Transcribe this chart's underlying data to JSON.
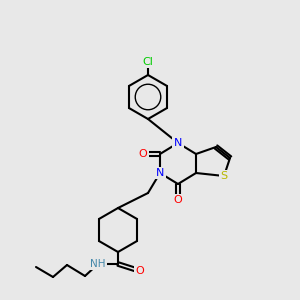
{
  "bg_color": "#e8e8e8",
  "atom_colors": {
    "N": "#0000ff",
    "O": "#ff0000",
    "S": "#b8b800",
    "Cl": "#00cc00",
    "NH": "#4488aa"
  },
  "bond_color": "#000000",
  "bond_lw": 1.5
}
